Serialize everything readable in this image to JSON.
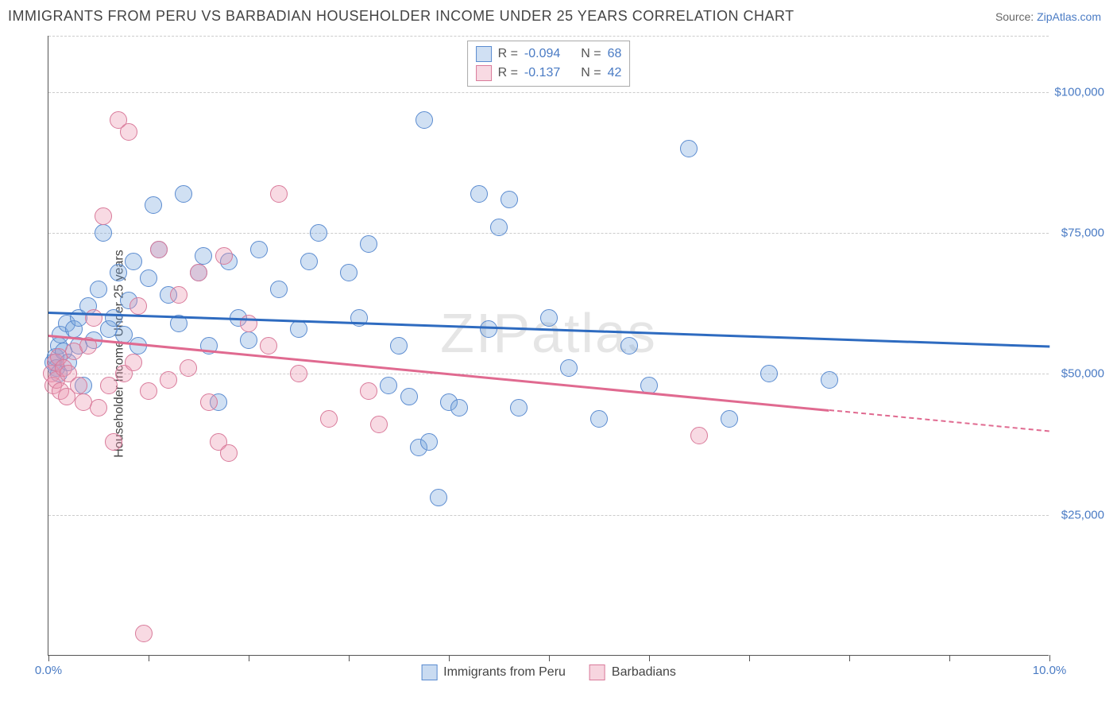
{
  "title": "IMMIGRANTS FROM PERU VS BARBADIAN HOUSEHOLDER INCOME UNDER 25 YEARS CORRELATION CHART",
  "source_label": "Source:",
  "source_name": "ZipAtlas.com",
  "watermark": "ZIPatlas",
  "chart": {
    "type": "scatter",
    "ylabel": "Householder Income Under 25 years",
    "xlim": [
      0,
      10
    ],
    "ylim": [
      0,
      110000
    ],
    "xticks": [
      0,
      1,
      2,
      3,
      4,
      5,
      6,
      7,
      8,
      9,
      10
    ],
    "xtick_labels": {
      "0": "0.0%",
      "10": "10.0%"
    },
    "yticks": [
      25000,
      50000,
      75000,
      100000
    ],
    "ytick_labels": [
      "$25,000",
      "$50,000",
      "$75,000",
      "$100,000"
    ],
    "grid_color": "#cccccc",
    "axis_color": "#555555",
    "background_color": "#ffffff",
    "label_color": "#4a7bc4",
    "point_radius": 11,
    "series": [
      {
        "name": "Immigrants from Peru",
        "fill": "rgba(120,165,220,0.35)",
        "stroke": "#5a8bd0",
        "trend_color": "#2e6bc0",
        "R": "-0.094",
        "N": "68",
        "trend": {
          "x1": 0.0,
          "y1": 61000,
          "x2": 10.0,
          "y2": 55000,
          "dash_from_x": null
        },
        "points": [
          [
            0.05,
            52000
          ],
          [
            0.07,
            53000
          ],
          [
            0.08,
            51000
          ],
          [
            0.1,
            55000
          ],
          [
            0.1,
            50000
          ],
          [
            0.12,
            57000
          ],
          [
            0.15,
            54000
          ],
          [
            0.18,
            59000
          ],
          [
            0.2,
            52000
          ],
          [
            0.25,
            58000
          ],
          [
            0.3,
            60000
          ],
          [
            0.3,
            55000
          ],
          [
            0.35,
            48000
          ],
          [
            0.4,
            62000
          ],
          [
            0.45,
            56000
          ],
          [
            0.5,
            65000
          ],
          [
            0.55,
            75000
          ],
          [
            0.6,
            58000
          ],
          [
            0.65,
            60000
          ],
          [
            0.7,
            68000
          ],
          [
            0.75,
            57000
          ],
          [
            0.8,
            63000
          ],
          [
            0.85,
            70000
          ],
          [
            0.9,
            55000
          ],
          [
            1.0,
            67000
          ],
          [
            1.05,
            80000
          ],
          [
            1.1,
            72000
          ],
          [
            1.2,
            64000
          ],
          [
            1.3,
            59000
          ],
          [
            1.35,
            82000
          ],
          [
            1.5,
            68000
          ],
          [
            1.55,
            71000
          ],
          [
            1.6,
            55000
          ],
          [
            1.7,
            45000
          ],
          [
            1.8,
            70000
          ],
          [
            1.9,
            60000
          ],
          [
            2.0,
            56000
          ],
          [
            2.1,
            72000
          ],
          [
            2.3,
            65000
          ],
          [
            2.5,
            58000
          ],
          [
            2.6,
            70000
          ],
          [
            2.7,
            75000
          ],
          [
            3.0,
            68000
          ],
          [
            3.1,
            60000
          ],
          [
            3.2,
            73000
          ],
          [
            3.4,
            48000
          ],
          [
            3.5,
            55000
          ],
          [
            3.6,
            46000
          ],
          [
            3.7,
            37000
          ],
          [
            3.75,
            95000
          ],
          [
            3.8,
            38000
          ],
          [
            3.9,
            28000
          ],
          [
            4.0,
            45000
          ],
          [
            4.1,
            44000
          ],
          [
            4.3,
            82000
          ],
          [
            4.4,
            58000
          ],
          [
            4.5,
            76000
          ],
          [
            4.6,
            81000
          ],
          [
            4.7,
            44000
          ],
          [
            5.0,
            60000
          ],
          [
            5.2,
            51000
          ],
          [
            5.5,
            42000
          ],
          [
            5.8,
            55000
          ],
          [
            6.0,
            48000
          ],
          [
            6.4,
            90000
          ],
          [
            6.8,
            42000
          ],
          [
            7.2,
            50000
          ],
          [
            7.8,
            49000
          ]
        ]
      },
      {
        "name": "Barbadians",
        "fill": "rgba(235,150,175,0.35)",
        "stroke": "#d97a9a",
        "trend_color": "#e06a90",
        "R": "-0.137",
        "N": "42",
        "trend": {
          "x1": 0.0,
          "y1": 57000,
          "x2": 10.0,
          "y2": 40000,
          "dash_from_x": 7.8
        },
        "points": [
          [
            0.03,
            50000
          ],
          [
            0.05,
            48000
          ],
          [
            0.07,
            52000
          ],
          [
            0.08,
            49000
          ],
          [
            0.1,
            53000
          ],
          [
            0.12,
            47000
          ],
          [
            0.15,
            51000
          ],
          [
            0.18,
            46000
          ],
          [
            0.2,
            50000
          ],
          [
            0.25,
            54000
          ],
          [
            0.3,
            48000
          ],
          [
            0.35,
            45000
          ],
          [
            0.4,
            55000
          ],
          [
            0.45,
            60000
          ],
          [
            0.5,
            44000
          ],
          [
            0.55,
            78000
          ],
          [
            0.6,
            48000
          ],
          [
            0.65,
            38000
          ],
          [
            0.7,
            95000
          ],
          [
            0.75,
            50000
          ],
          [
            0.8,
            93000
          ],
          [
            0.85,
            52000
          ],
          [
            0.9,
            62000
          ],
          [
            0.95,
            4000
          ],
          [
            1.0,
            47000
          ],
          [
            1.1,
            72000
          ],
          [
            1.2,
            49000
          ],
          [
            1.3,
            64000
          ],
          [
            1.4,
            51000
          ],
          [
            1.5,
            68000
          ],
          [
            1.6,
            45000
          ],
          [
            1.7,
            38000
          ],
          [
            1.75,
            71000
          ],
          [
            1.8,
            36000
          ],
          [
            2.0,
            59000
          ],
          [
            2.2,
            55000
          ],
          [
            2.3,
            82000
          ],
          [
            2.5,
            50000
          ],
          [
            2.8,
            42000
          ],
          [
            3.2,
            47000
          ],
          [
            3.3,
            41000
          ],
          [
            6.5,
            39000
          ]
        ]
      }
    ],
    "legend_bottom": [
      {
        "label": "Immigrants from Peru",
        "fill": "rgba(120,165,220,0.4)",
        "stroke": "#5a8bd0"
      },
      {
        "label": "Barbadians",
        "fill": "rgba(235,150,175,0.4)",
        "stroke": "#d97a9a"
      }
    ]
  }
}
